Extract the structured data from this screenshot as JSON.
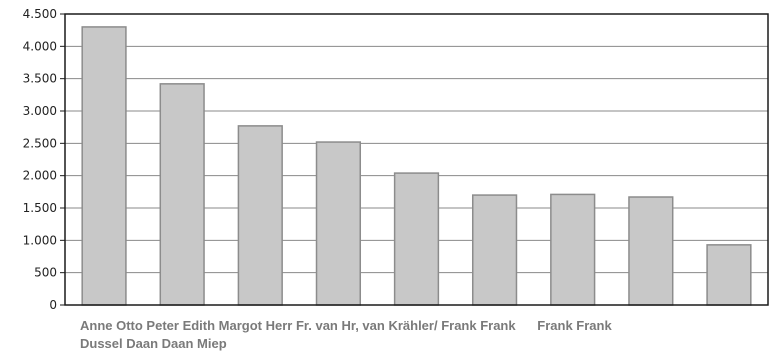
{
  "chart_data": {
    "type": "bar",
    "categories": [
      "Anne",
      "Otto",
      "Peter",
      "Edith",
      "Margot",
      "Herr Fr. van Hr, van",
      "Krähler/ Frank Frank",
      "Frank",
      "Frank"
    ],
    "values": [
      4300,
      3420,
      2770,
      2520,
      2040,
      1700,
      1710,
      1670,
      930
    ],
    "title": "",
    "xlabel": "",
    "ylabel": "",
    "ylim": [
      0,
      4500
    ],
    "yticks": [
      0,
      500,
      1000,
      1500,
      2000,
      2500,
      3000,
      3500,
      4000,
      4500
    ],
    "ytick_labels": [
      "0",
      "500",
      "1.000",
      "1.500",
      "2.000",
      "2.500",
      "3.000",
      "3.500",
      "4.000",
      "4.500"
    ],
    "grid": true,
    "bar_color": "#c8c8c8",
    "bar_edge_color": "#8c8c8c",
    "category_text": {
      "line1": "Anne Otto Peter Edith Margot Herr Fr. van Hr, van Krähler/ Frank Frank      Frank Frank",
      "line2": "Dussel Daan Daan Miep"
    }
  }
}
